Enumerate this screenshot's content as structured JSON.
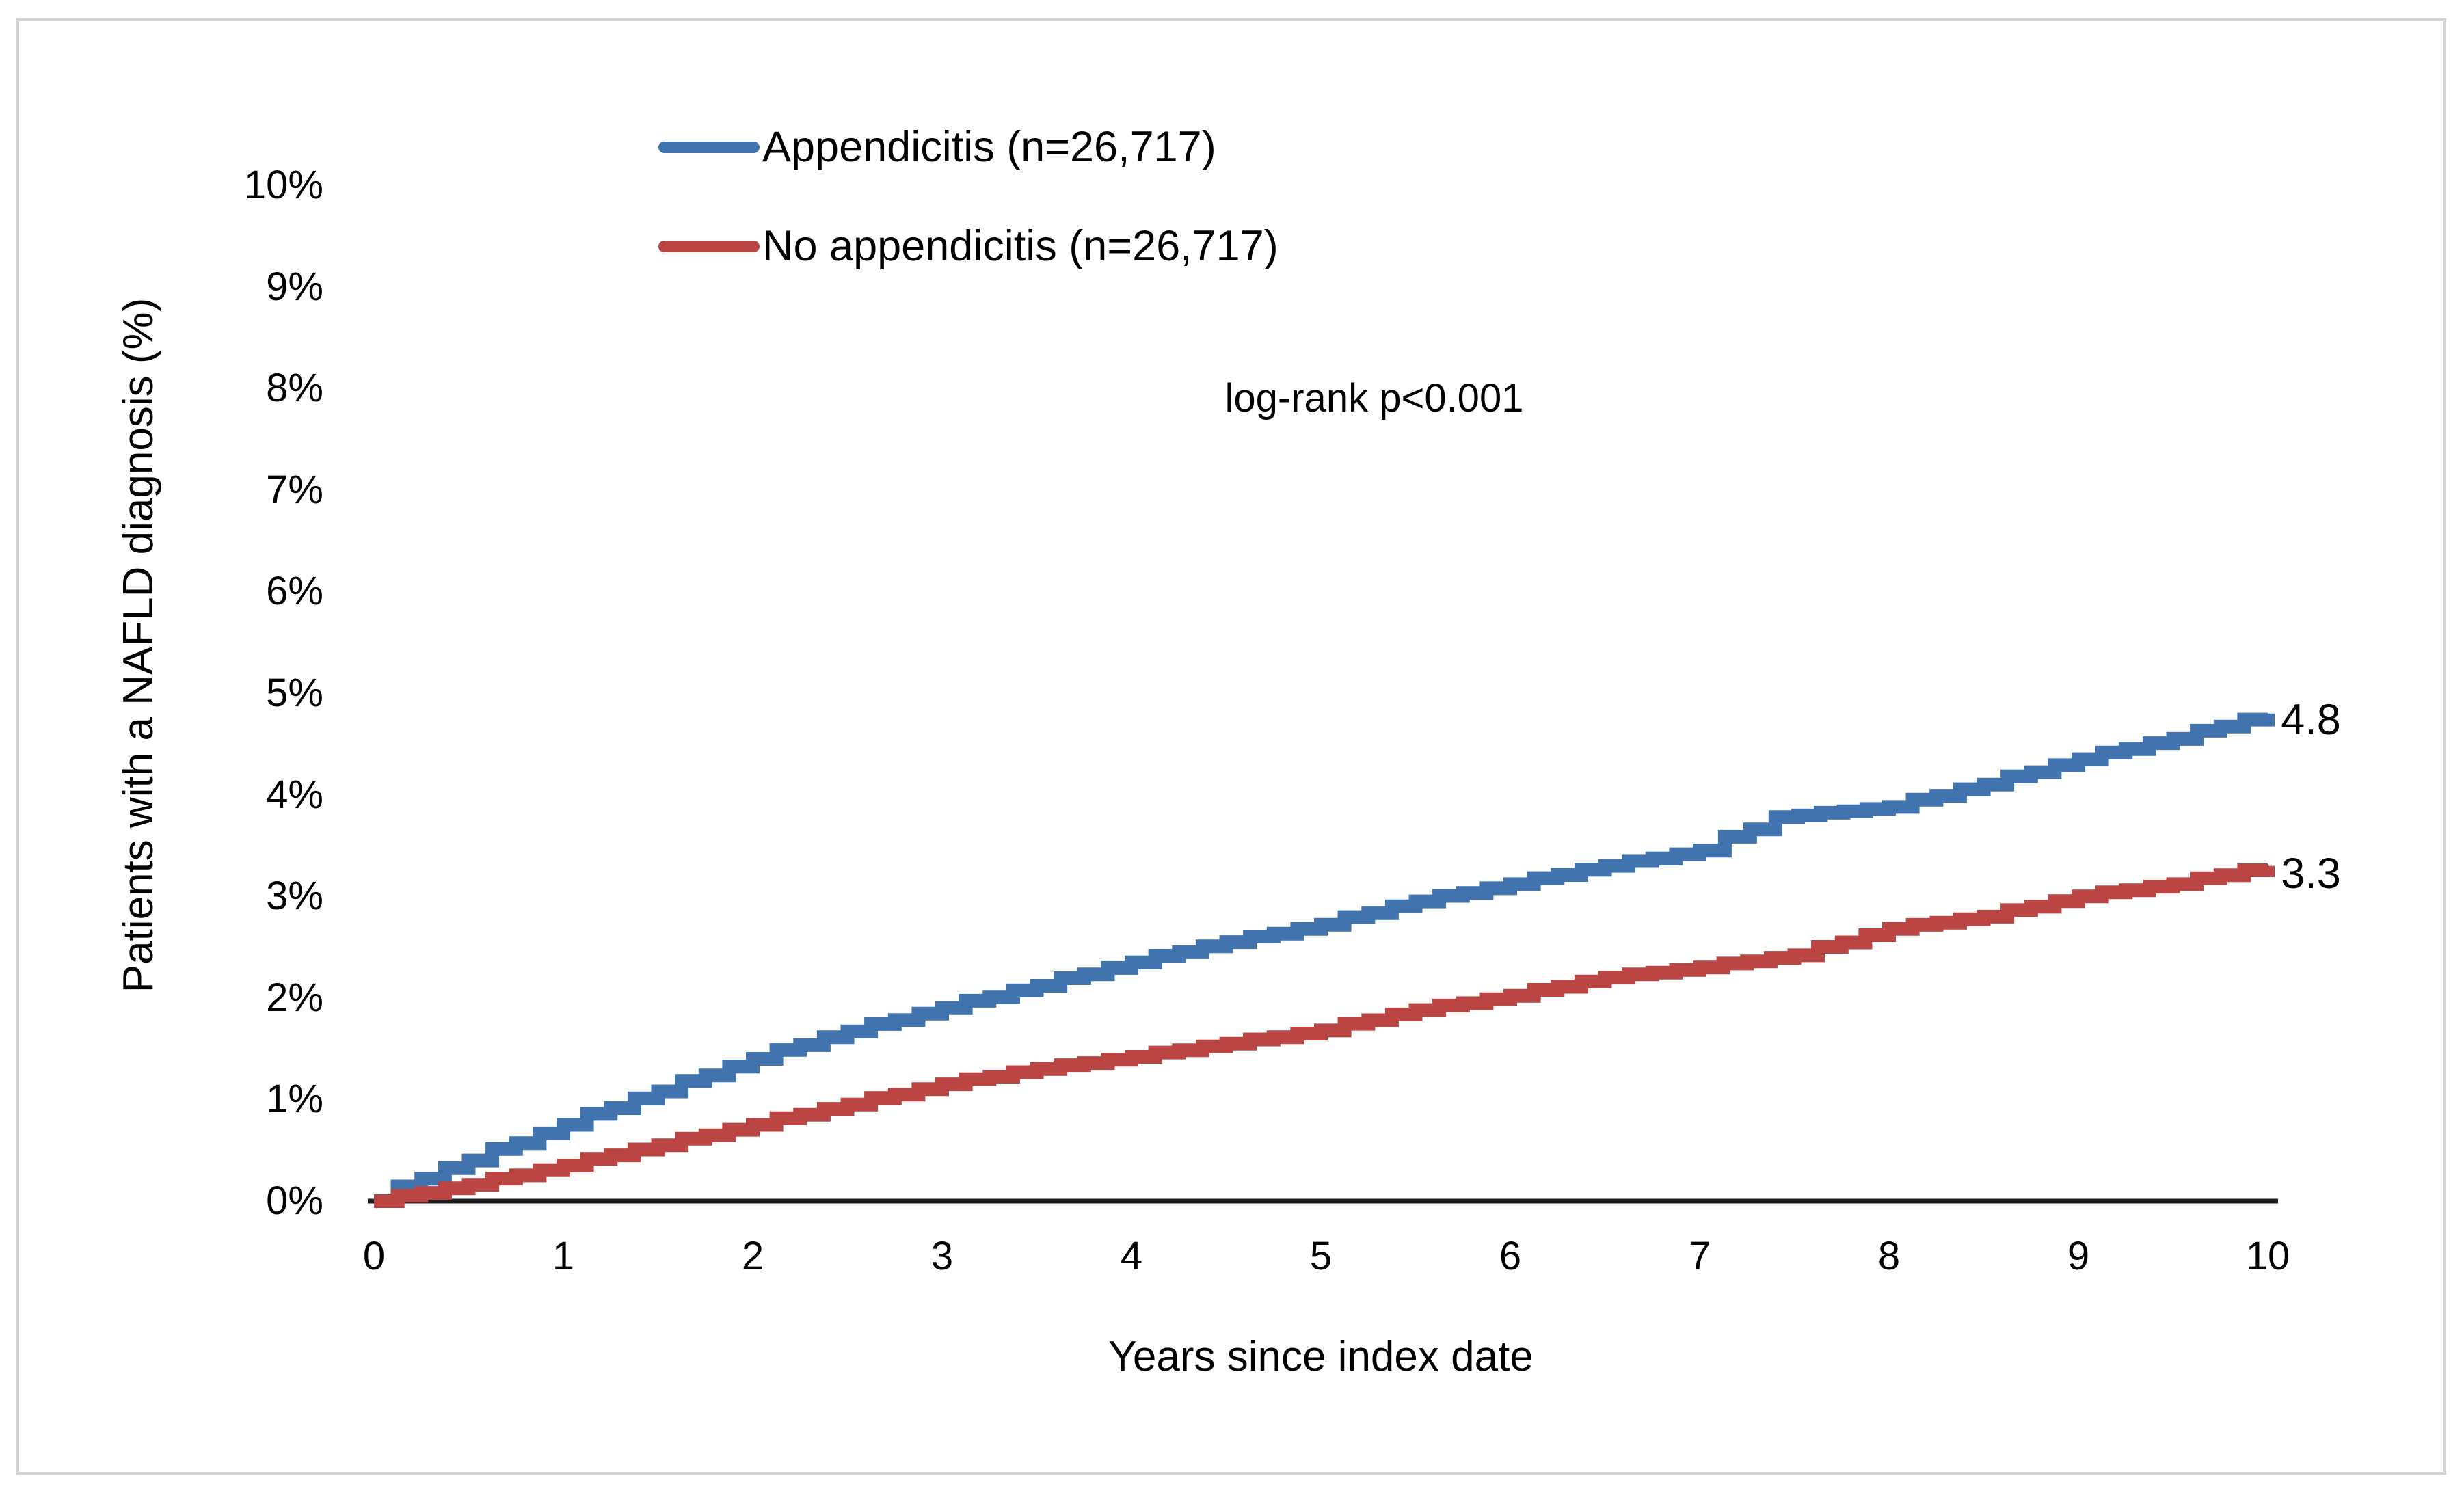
{
  "figure": {
    "y_axis_title": "Patients with a NAFLD diagnosis (%)",
    "x_axis_title": "Years since index date",
    "y_tick_labels": [
      "10%",
      "9%",
      "8%",
      "7%",
      "6%",
      "5%",
      "4%",
      "3%",
      "2%",
      "1%",
      "0%"
    ],
    "x_tick_labels": [
      "0",
      "1",
      "2",
      "3",
      "4",
      "5",
      "6",
      "7",
      "8",
      "9",
      "10"
    ],
    "annotation": "log-rank p<0.001",
    "legend": {
      "item1_label": "Appendicitis (n=26,717)",
      "item2_label": "No appendicitis (n=26,717)"
    },
    "end_label_blue": "4.8",
    "end_label_red": "3.3"
  },
  "colors": {
    "blue_line": "#4173AE",
    "red_line": "#BA4543",
    "axis_line": "#1c1c1c",
    "frame_border": "#d2d2d2",
    "text": "#000000"
  },
  "chart_data": {
    "type": "line",
    "subtype": "kaplan-meier-cumulative-incidence-step",
    "title": "",
    "xlabel": "Years since index date",
    "ylabel": "Patients with a NAFLD diagnosis (%)",
    "xlim": [
      0,
      10
    ],
    "ylim": [
      0,
      10
    ],
    "y_unit": "%",
    "grid": false,
    "legend_position": "top-center-inside",
    "annotation": "log-rank p<0.001",
    "series": [
      {
        "name": "Appendicitis (n=26,717)",
        "color": "#4173AE",
        "end_label": "4.8",
        "final_value_pct": 4.8,
        "points": [
          [
            0,
            0
          ],
          [
            0.25,
            0.22
          ],
          [
            0.5,
            0.4
          ],
          [
            1,
            0.75
          ],
          [
            1.5,
            1.08
          ],
          [
            2,
            1.4
          ],
          [
            2.5,
            1.67
          ],
          [
            3,
            1.9
          ],
          [
            3.5,
            2.12
          ],
          [
            4,
            2.35
          ],
          [
            4.5,
            2.55
          ],
          [
            5,
            2.72
          ],
          [
            5.5,
            2.95
          ],
          [
            6,
            3.12
          ],
          [
            6.5,
            3.3
          ],
          [
            7,
            3.45
          ],
          [
            7.4,
            3.78
          ],
          [
            8,
            3.88
          ],
          [
            8.5,
            4.1
          ],
          [
            9,
            4.35
          ],
          [
            9.5,
            4.55
          ],
          [
            10,
            4.8
          ]
        ]
      },
      {
        "name": "No appendicitis (n=26,717)",
        "color": "#BA4543",
        "end_label": "3.3",
        "final_value_pct": 3.3,
        "points": [
          [
            0,
            0
          ],
          [
            0.25,
            0.08
          ],
          [
            0.5,
            0.16
          ],
          [
            1,
            0.35
          ],
          [
            1.5,
            0.55
          ],
          [
            2,
            0.75
          ],
          [
            2.5,
            0.95
          ],
          [
            3,
            1.15
          ],
          [
            3.5,
            1.3
          ],
          [
            4,
            1.42
          ],
          [
            4.5,
            1.55
          ],
          [
            5,
            1.68
          ],
          [
            5.5,
            1.88
          ],
          [
            6,
            2.02
          ],
          [
            6.5,
            2.2
          ],
          [
            7,
            2.3
          ],
          [
            7.5,
            2.42
          ],
          [
            8,
            2.68
          ],
          [
            8.5,
            2.8
          ],
          [
            9,
            3.0
          ],
          [
            9.5,
            3.12
          ],
          [
            10,
            3.3
          ]
        ]
      }
    ]
  }
}
